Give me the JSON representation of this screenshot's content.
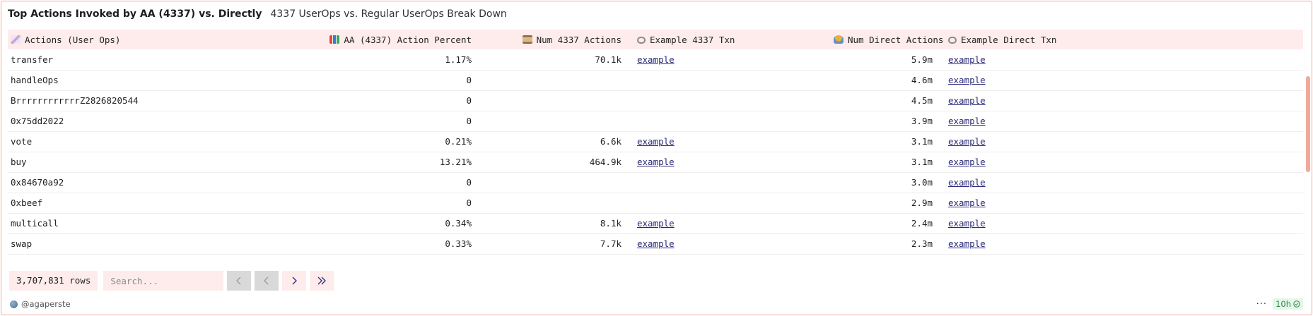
{
  "header": {
    "title": "Top Actions Invoked by AA (4337) vs. Directly",
    "subtitle": "4337 UserOps vs. Regular UserOps Break Down"
  },
  "columns": [
    {
      "label": "Actions (User Ops)",
      "icon": "syringe-icon",
      "icon_color": "#c9a7d6"
    },
    {
      "label": "AA (4337) Action Percent",
      "icon": "bar-chart-icon",
      "icon_color": "#3b7bd4"
    },
    {
      "label": "Num 4337 Actions",
      "icon": "scroll-icon",
      "icon_color": "#b08a5a"
    },
    {
      "label": "Example 4337 Txn",
      "icon": "link-icon",
      "icon_color": "#8a8a8a"
    },
    {
      "label": "Num Direct Actions",
      "icon": "worker-icon",
      "icon_color": "#e3b23c"
    },
    {
      "label": "Example Direct Txn",
      "icon": "link-icon",
      "icon_color": "#8a8a8a"
    }
  ],
  "rows": [
    {
      "action": "transfer",
      "percent": "1.17%",
      "num4337": "70.1k",
      "ex4337": "example",
      "direct": "5.9m",
      "exDirect": "example"
    },
    {
      "action": "handleOps",
      "percent": "0",
      "num4337": "",
      "ex4337": "",
      "direct": "4.6m",
      "exDirect": "example"
    },
    {
      "action": "BrrrrrrrrrrrrZ2826820544",
      "percent": "0",
      "num4337": "",
      "ex4337": "",
      "direct": "4.5m",
      "exDirect": "example"
    },
    {
      "action": "0x75dd2022",
      "percent": "0",
      "num4337": "",
      "ex4337": "",
      "direct": "3.9m",
      "exDirect": "example"
    },
    {
      "action": "vote",
      "percent": "0.21%",
      "num4337": "6.6k",
      "ex4337": "example",
      "direct": "3.1m",
      "exDirect": "example"
    },
    {
      "action": "buy",
      "percent": "13.21%",
      "num4337": "464.9k",
      "ex4337": "example",
      "direct": "3.1m",
      "exDirect": "example"
    },
    {
      "action": "0x84670a92",
      "percent": "0",
      "num4337": "",
      "ex4337": "",
      "direct": "3.0m",
      "exDirect": "example"
    },
    {
      "action": "0xbeef",
      "percent": "0",
      "num4337": "",
      "ex4337": "",
      "direct": "2.9m",
      "exDirect": "example"
    },
    {
      "action": "multicall",
      "percent": "0.34%",
      "num4337": "8.1k",
      "ex4337": "example",
      "direct": "2.4m",
      "exDirect": "example"
    },
    {
      "action": "swap",
      "percent": "0.33%",
      "num4337": "7.7k",
      "ex4337": "example",
      "direct": "2.3m",
      "exDirect": "example"
    }
  ],
  "footer": {
    "rows_count": "3,707,831 rows",
    "search_placeholder": "Search...",
    "author": "@agaperste",
    "more": "···",
    "refresh_badge": "10h"
  },
  "colors": {
    "accent_border": "#f2a89b",
    "header_bg": "#fdeceb",
    "link": "#2a2a7a",
    "badge_green": "#2e8b4a"
  }
}
